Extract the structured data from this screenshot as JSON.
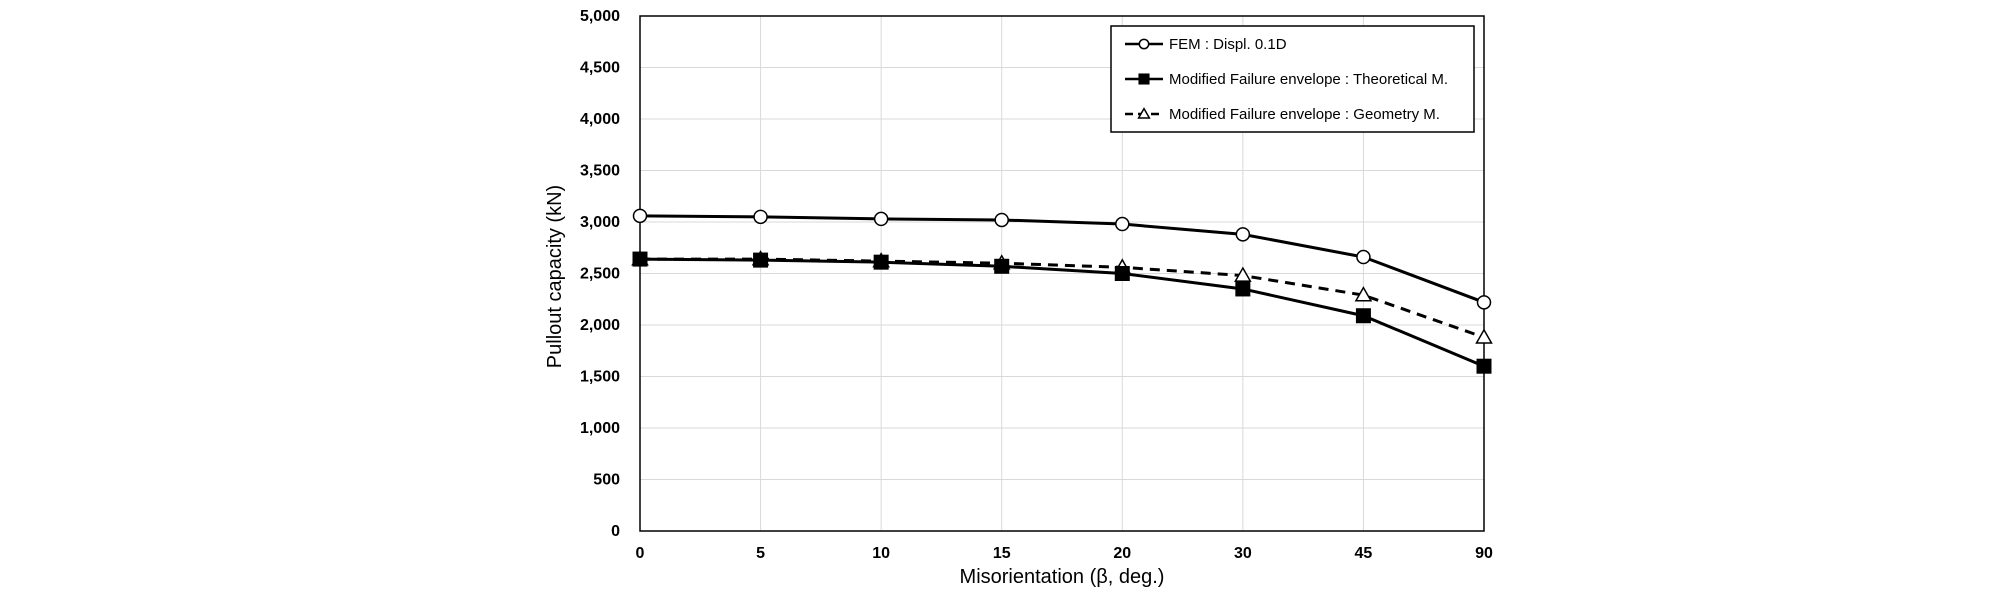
{
  "chart_data": {
    "type": "line",
    "categories": [
      "0",
      "5",
      "10",
      "15",
      "20",
      "30",
      "45",
      "90"
    ],
    "xlabel": "Misorientation (β, deg.)",
    "ylabel": "Pullout capacity (kN)",
    "ylim": [
      0,
      5000
    ],
    "yticks": [
      "0",
      "500",
      "1,000",
      "1,500",
      "2,000",
      "2,500",
      "3,000",
      "3,500",
      "4,000",
      "4,500",
      "5,000"
    ],
    "grid": true,
    "legend_position": "top-right",
    "series": [
      {
        "name": "FEM : Displ. 0.1D",
        "values": [
          3060,
          3050,
          3030,
          3020,
          2980,
          2880,
          2660,
          2220
        ],
        "marker": "circle-open",
        "line": "solid",
        "color": "#000000"
      },
      {
        "name": "Modified Failure envelope : Theoretical M.",
        "values": [
          2640,
          2630,
          2610,
          2570,
          2500,
          2350,
          2090,
          1600
        ],
        "marker": "square-filled",
        "line": "solid",
        "color": "#000000"
      },
      {
        "name": "Modified Failure envelope : Geometry M.",
        "values": [
          2640,
          2640,
          2620,
          2600,
          2560,
          2480,
          2290,
          1880
        ],
        "marker": "triangle-open",
        "line": "dashed",
        "color": "#000000"
      }
    ]
  },
  "colors": {
    "grid": "#d9d9d9",
    "axis": "#000000",
    "background": "#ffffff"
  }
}
